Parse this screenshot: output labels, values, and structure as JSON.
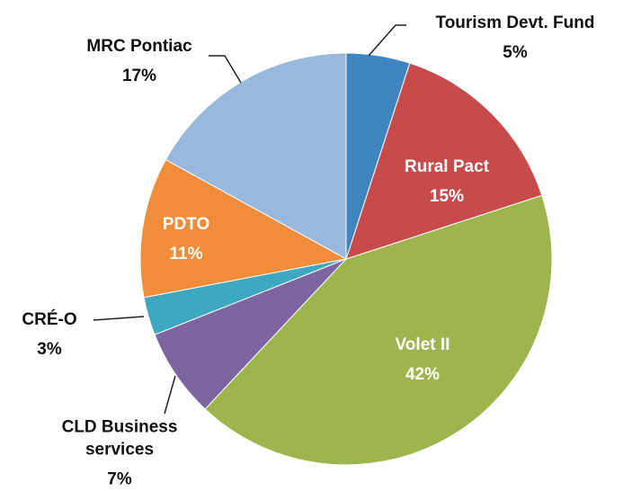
{
  "chart_data": {
    "type": "pie",
    "categories": [
      "Tourism Devt. Fund",
      "Rural Pact",
      "Volet II",
      "CLD Business services",
      "CRÉ-O",
      "PDTO",
      "MRC Pontiac"
    ],
    "values": [
      5,
      15,
      42,
      7,
      3,
      11,
      17
    ],
    "value_labels": [
      "5%",
      "15%",
      "42%",
      "7%",
      "3%",
      "11%",
      "17%"
    ],
    "colors": [
      "#3f85c0",
      "#c84b4b",
      "#9db54c",
      "#7d65a1",
      "#3ea8c0",
      "#f08c3a",
      "#98b8dc"
    ]
  }
}
